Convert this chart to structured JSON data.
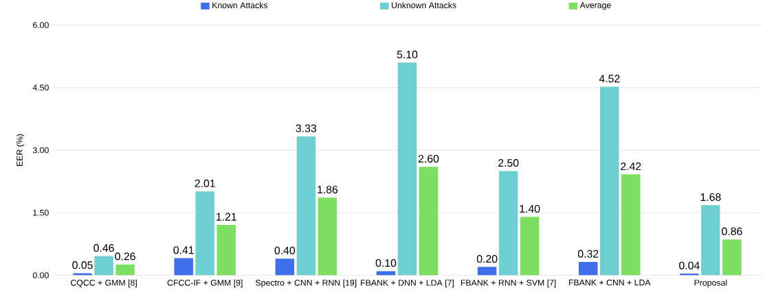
{
  "chart_data": {
    "type": "bar",
    "ylabel": "EER (%)",
    "categories": [
      "CQCC + GMM [8]",
      "CFCC-IF + GMM [9]",
      "Spectro + CNN + RNN [19]",
      "FBANK + DNN + LDA [7]",
      "FBANK + RNN + SVM [7]",
      "FBANK + CNN + LDA",
      "Proposal"
    ],
    "series": [
      {
        "name": "Known Attacks",
        "color": "#3f6fe8",
        "values": [
          0.05,
          0.41,
          0.4,
          0.1,
          0.2,
          0.32,
          0.04
        ],
        "value_labels": [
          "0.05",
          "0.41",
          "0.40",
          "0.10",
          "0.20",
          "0.32",
          "0.04"
        ]
      },
      {
        "name": "Unknown Attacks",
        "color": "#6dcfcf",
        "values": [
          0.46,
          2.01,
          3.33,
          5.1,
          2.5,
          4.52,
          1.68
        ],
        "value_labels": [
          "0.46",
          "2.01",
          "3.33",
          "5.10",
          "2.50",
          "4.52",
          "1.68"
        ]
      },
      {
        "name": "Average",
        "color": "#7ddf62",
        "values": [
          0.26,
          1.21,
          1.86,
          2.6,
          1.4,
          2.42,
          0.86
        ],
        "value_labels": [
          "0.26",
          "1.21",
          "1.86",
          "2.60",
          "1.40",
          "2.42",
          "0.86"
        ]
      }
    ],
    "ylim": [
      0,
      6
    ],
    "yticks": [
      {
        "value": 0,
        "label": "0.00"
      },
      {
        "value": 1.5,
        "label": "1.50"
      },
      {
        "value": 3,
        "label": "3.00"
      },
      {
        "value": 4.5,
        "label": "4.50"
      },
      {
        "value": 6,
        "label": "6.00"
      }
    ],
    "grid": "y",
    "legend": "top"
  }
}
